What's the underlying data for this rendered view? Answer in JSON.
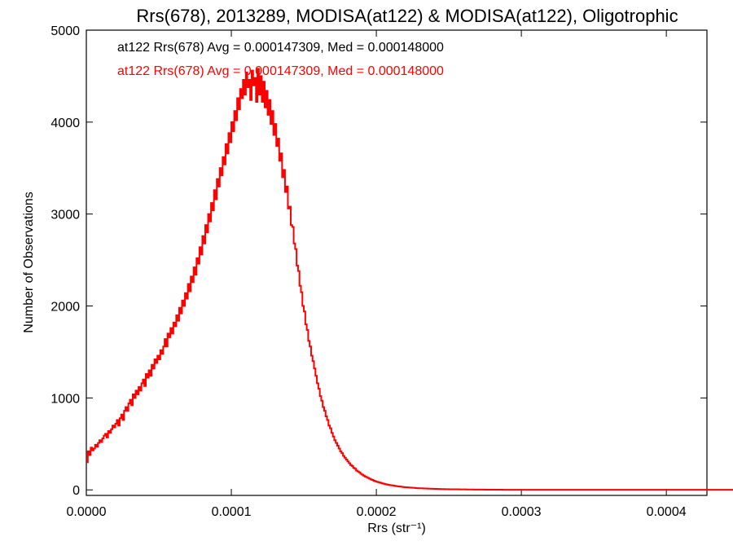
{
  "chart_data": {
    "type": "histogram",
    "title": "Rrs(678), 2013289, MODISA(at122) & MODISA(at122), Oligotrophic",
    "xlabel": "Rrs (str⁻¹)",
    "ylabel": "Number of Observations",
    "xlim": [
      0.0,
      0.000428
    ],
    "ylim": [
      -60,
      5000
    ],
    "x_ticks": [
      0.0,
      0.0001,
      0.0002,
      0.0003,
      0.0004
    ],
    "x_tick_labels": [
      "0.0000",
      "0.0001",
      "0.0002",
      "0.0003",
      "0.0004"
    ],
    "y_ticks": [
      0,
      1000,
      2000,
      3000,
      4000,
      5000
    ],
    "y_tick_labels": [
      "0",
      "1000",
      "2000",
      "3000",
      "4000",
      "5000"
    ],
    "legend": [
      {
        "text": "at122 Rrs(678) Avg = 0.000147309, Med = 0.000148000",
        "color": "#000000"
      },
      {
        "text": "at122 Rrs(678) Avg = 0.000147309, Med = 0.000148000",
        "color": "#ff0000"
      }
    ],
    "series": [
      {
        "color": "#ff0000",
        "bin_width": 1e-06,
        "bin_start": 0.0,
        "values": [
          300,
          420,
          380,
          460,
          430,
          450,
          490,
          470,
          510,
          540,
          520,
          560,
          590,
          610,
          570,
          640,
          620,
          660,
          700,
          680,
          720,
          760,
          700,
          780,
          820,
          760,
          860,
          900,
          860,
          940,
          980,
          920,
          1040,
          1000,
          1080,
          1040,
          1120,
          1080,
          1160,
          1200,
          1130,
          1260,
          1220,
          1300,
          1240,
          1360,
          1320,
          1420,
          1380,
          1460,
          1420,
          1520,
          1480,
          1560,
          1640,
          1560,
          1700,
          1660,
          1760,
          1700,
          1820,
          1780,
          1900,
          1840,
          1980,
          1920,
          2060,
          2000,
          2140,
          2080,
          2240,
          2160,
          2320,
          2260,
          2420,
          2340,
          2520,
          2460,
          2640,
          2560,
          2760,
          2680,
          2880,
          2800,
          3000,
          2920,
          3120,
          3040,
          3260,
          3160,
          3380,
          3300,
          3500,
          3420,
          3620,
          3540,
          3760,
          3660,
          3880,
          3780,
          4000,
          3900,
          4120,
          4020,
          4260,
          4140,
          4360,
          4260,
          4460,
          4300,
          4540,
          4380,
          4460,
          4240,
          4560,
          4400,
          4480,
          4220,
          4580,
          4300,
          4500,
          4220,
          4440,
          4160,
          4340,
          4080,
          4240,
          3980,
          4120,
          3860,
          3980,
          3740,
          3820,
          3580,
          3660,
          3400,
          3480,
          3240,
          3300,
          3060,
          3080,
          2880,
          2860,
          2680,
          2620,
          2440,
          2380,
          2220,
          2150,
          2000,
          1940,
          1800,
          1740,
          1620,
          1560,
          1460,
          1400,
          1320,
          1240,
          1160,
          1100,
          1020,
          970,
          900,
          860,
          800,
          760,
          700,
          670,
          620,
          580,
          540,
          510,
          480,
          450,
          420,
          400,
          370,
          350,
          330,
          310,
          290,
          270,
          260,
          240,
          230,
          210,
          200,
          190,
          175,
          165,
          155,
          145,
          138,
          130,
          122,
          114,
          108,
          100,
          94,
          88,
          84,
          80,
          75,
          70,
          66,
          62,
          58,
          55,
          52,
          50,
          48,
          45,
          42,
          40,
          38,
          36,
          34,
          32,
          30,
          29,
          28,
          26,
          25,
          24,
          23,
          22,
          20,
          19,
          18,
          18,
          17,
          16,
          15,
          15,
          14,
          13,
          13,
          12,
          12,
          11,
          11,
          10,
          10,
          9,
          9,
          9,
          8,
          8,
          8,
          7,
          7,
          7,
          6,
          6,
          6,
          6,
          5,
          5,
          5,
          5,
          5,
          4,
          4,
          4,
          4,
          4,
          3,
          3,
          3,
          3,
          3,
          3,
          3,
          3,
          2,
          2,
          2,
          2,
          2,
          2,
          2,
          2,
          2,
          2,
          2,
          2,
          1,
          1,
          1,
          1,
          1,
          1,
          1,
          1,
          1,
          1,
          1,
          1,
          1,
          1,
          1,
          1,
          1,
          1,
          1,
          1,
          1,
          1,
          1,
          1,
          1,
          1,
          1,
          1,
          1,
          1,
          1,
          1,
          1,
          1,
          1,
          1,
          1,
          1,
          1,
          1,
          1,
          1,
          1,
          1,
          1,
          1,
          1,
          1,
          1,
          1,
          1,
          1,
          1,
          1,
          1,
          1,
          1,
          1,
          1,
          1,
          1,
          1,
          1,
          1,
          1,
          1,
          1,
          1,
          1,
          1,
          1,
          1,
          1,
          1,
          1,
          1,
          1,
          1,
          1,
          1,
          1,
          1,
          1,
          1,
          1,
          1,
          1,
          1,
          1,
          1,
          1,
          1,
          1,
          1,
          1,
          1,
          1,
          1,
          1,
          1,
          1,
          1,
          1,
          1,
          1,
          1,
          1,
          1,
          1,
          1,
          1,
          1,
          1,
          1,
          1,
          1,
          1,
          1,
          1,
          1,
          1,
          1,
          1,
          1,
          1,
          1,
          1,
          1,
          1,
          1,
          1,
          1,
          1,
          1,
          1,
          1,
          1,
          1,
          1,
          1,
          1,
          1,
          1,
          1,
          1,
          1,
          1,
          1,
          1,
          1,
          1,
          1,
          1,
          1,
          1,
          1,
          1,
          1,
          1,
          1,
          1
        ]
      }
    ]
  }
}
